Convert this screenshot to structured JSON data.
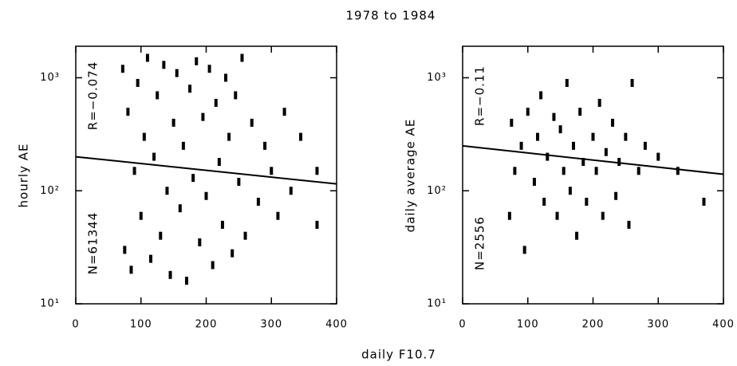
{
  "title": "1978 to 1984",
  "xlabel": "daily F10.7",
  "chart_data": [
    {
      "type": "scatter",
      "ylabel": "hourly AE",
      "annotations": [
        "R=−0.074",
        "N=61344"
      ],
      "log_y": true,
      "color": "#000000",
      "xlim": [
        0,
        400
      ],
      "xticks": [
        0,
        100,
        200,
        300,
        400
      ],
      "ylim": [
        10,
        1900
      ],
      "yticks": [
        {
          "value": 10,
          "label": "10¹"
        },
        {
          "value": 100,
          "label": "10²"
        },
        {
          "value": 1000,
          "label": "10³"
        }
      ],
      "x": [
        72,
        75,
        80,
        85,
        90,
        95,
        100,
        105,
        110,
        115,
        120,
        125,
        130,
        135,
        140,
        145,
        150,
        155,
        160,
        165,
        170,
        175,
        180,
        185,
        190,
        195,
        200,
        205,
        210,
        215,
        220,
        225,
        230,
        235,
        240,
        245,
        250,
        255,
        260,
        270,
        280,
        290,
        300,
        310,
        320,
        330,
        345,
        370,
        370
      ],
      "values": [
        1200,
        30,
        500,
        20,
        150,
        900,
        60,
        300,
        1500,
        25,
        200,
        700,
        40,
        1300,
        100,
        18,
        400,
        1100,
        70,
        250,
        16,
        800,
        130,
        1400,
        35,
        450,
        90,
        1200,
        22,
        600,
        180,
        50,
        1000,
        300,
        28,
        700,
        120,
        1500,
        40,
        400,
        80,
        250,
        150,
        60,
        500,
        100,
        300,
        150,
        50
      ],
      "fit": {
        "x": [
          0,
          400
        ],
        "values": [
          200,
          115
        ]
      }
    },
    {
      "type": "scatter",
      "ylabel": "daily average AE",
      "annotations": [
        "R=−0.11",
        "N=2556"
      ],
      "log_y": true,
      "color": "#000000",
      "xlim": [
        0,
        400
      ],
      "xticks": [
        0,
        100,
        200,
        300,
        400
      ],
      "ylim": [
        10,
        1900
      ],
      "yticks": [
        {
          "value": 10,
          "label": "10¹"
        },
        {
          "value": 100,
          "label": "10²"
        },
        {
          "value": 1000,
          "label": "10³"
        }
      ],
      "x": [
        72,
        75,
        80,
        90,
        95,
        100,
        110,
        115,
        120,
        125,
        130,
        140,
        145,
        150,
        155,
        160,
        165,
        170,
        175,
        180,
        185,
        190,
        200,
        205,
        210,
        215,
        220,
        230,
        235,
        240,
        250,
        255,
        260,
        270,
        280,
        300,
        330,
        370
      ],
      "values": [
        60,
        400,
        150,
        250,
        30,
        500,
        120,
        300,
        700,
        80,
        200,
        450,
        60,
        350,
        150,
        900,
        100,
        250,
        40,
        500,
        180,
        80,
        300,
        150,
        600,
        60,
        220,
        400,
        90,
        180,
        300,
        50,
        900,
        150,
        250,
        200,
        150,
        80
      ],
      "fit": {
        "x": [
          0,
          400
        ],
        "values": [
          250,
          140
        ]
      }
    }
  ]
}
